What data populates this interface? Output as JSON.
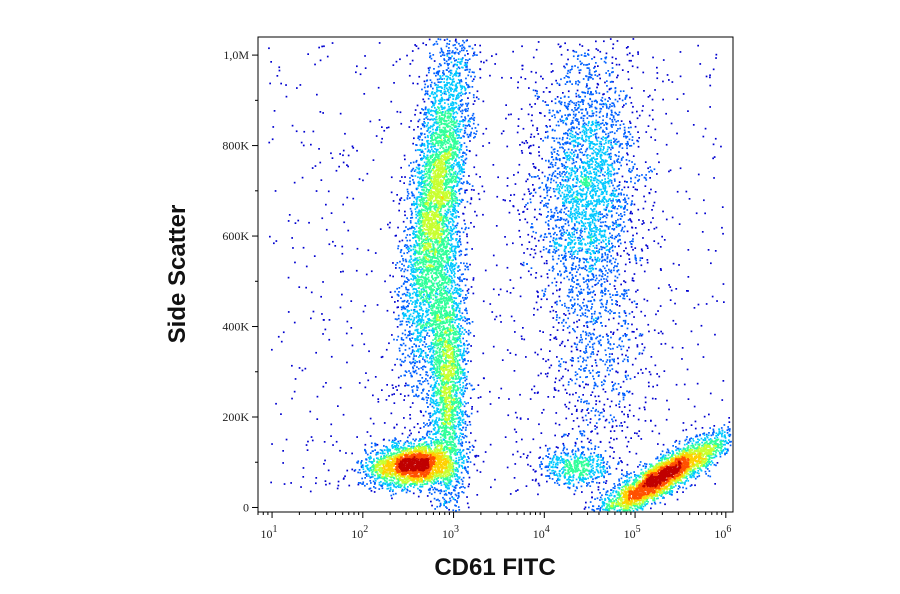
{
  "chart_data": {
    "type": "scatter",
    "subtype": "flow-cytometry density dot plot",
    "xlabel": "CD61 FITC",
    "ylabel": "Side Scatter",
    "x_scale": "log",
    "xlim": [
      7,
      1200000
    ],
    "ylim": [
      -10000,
      1040000
    ],
    "x_ticks": [
      {
        "value": 10,
        "base": "10",
        "exp": "1"
      },
      {
        "value": 100,
        "base": "10",
        "exp": "2"
      },
      {
        "value": 1000,
        "base": "10",
        "exp": "3"
      },
      {
        "value": 10000,
        "base": "10",
        "exp": "4"
      },
      {
        "value": 100000,
        "base": "10",
        "exp": "5"
      },
      {
        "value": 1000000,
        "base": "10",
        "exp": "6"
      }
    ],
    "y_ticks": [
      {
        "value": 0,
        "label": "0"
      },
      {
        "value": 200000,
        "label": "200K"
      },
      {
        "value": 400000,
        "label": "400K"
      },
      {
        "value": 600000,
        "label": "600K"
      },
      {
        "value": 800000,
        "label": "800K"
      },
      {
        "value": 1000000,
        "label": "1,0M"
      }
    ],
    "grid": false,
    "color_scale": [
      "#0000d0",
      "#0060ff",
      "#00c8ff",
      "#30ff9a",
      "#c8ff30",
      "#ffd000",
      "#ff5000",
      "#c00000"
    ],
    "populations": [
      {
        "x": 350,
        "y": 95000,
        "count": 2400
      },
      {
        "x": 850,
        "y": 300000,
        "count": 2600
      },
      {
        "x": 630,
        "y": 680000,
        "count": 4200
      },
      {
        "x": 30000,
        "y": 700000,
        "count": 2800
      },
      {
        "x": 35000,
        "y": 300000,
        "count": 500
      },
      {
        "x": 200000,
        "y": 70000,
        "count": 3200
      },
      {
        "x": 22000,
        "y": 90000,
        "count": 500
      }
    ]
  }
}
